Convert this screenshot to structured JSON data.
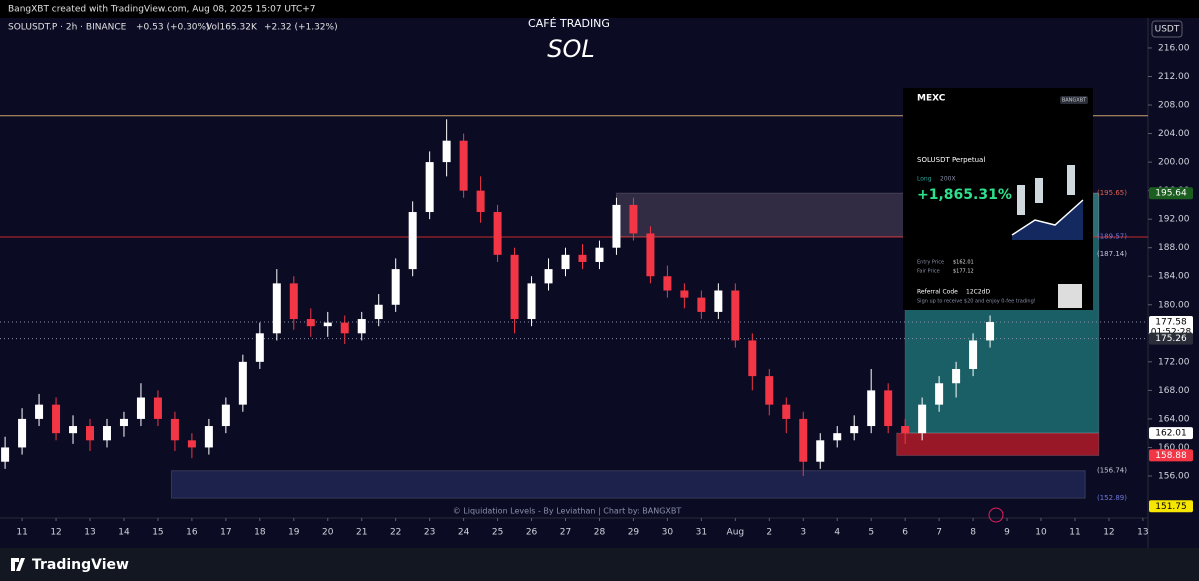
{
  "header": {
    "credit": "BangXBT created with TradingView.com, Aug 08, 2025 15:07 UTC+7",
    "symbol": "SOLUSDT.P · 2h · BINANCE",
    "change": "+0.53 (+0.30%)",
    "volume": "Vol165.32K",
    "volume_change": "+2.32 (+1.32%)"
  },
  "footer": {
    "brand": "TradingView",
    "watermark": "© Liquidation Levels - By Leviathan | Chart by: BANGXBT"
  },
  "card": {
    "exchange": "MEXC",
    "user": "BANGXBT",
    "instrument": "SOLUSDT Perpetual",
    "side": "Long",
    "leverage": "200X",
    "pnl": "+1,865.31%",
    "entry_label": "Entry Price",
    "entry": "$162.01",
    "fair_label": "Fair Price",
    "fair": "$177.12",
    "referral_label": "Referral Code",
    "referral": "12C2dD",
    "promo": "Sign up to receive $20 and enjoy 0-fee trading!"
  },
  "chart_data": {
    "type": "candlestick",
    "title": "CAFÉ TRADING",
    "subtitle": "SOL",
    "currency": "USDT",
    "up_color": "#ffffff",
    "down_color": "#f23645",
    "x": [
      -0.5,
      0,
      0.5,
      1,
      1.5,
      2,
      2.5,
      3,
      3.5,
      4,
      4.5,
      5,
      5.5,
      6,
      6.5,
      7,
      7.5,
      8,
      8.5,
      9,
      9.5,
      10,
      10.5,
      11,
      11.5,
      12,
      12.5,
      13,
      13.5,
      14,
      14.5,
      15,
      15.5,
      16,
      16.5,
      17,
      17.5,
      18,
      18.5,
      19,
      19.5,
      20,
      20.5,
      21,
      21.5,
      22,
      22.5,
      23,
      23.5,
      24,
      24.5,
      25,
      25.5,
      26,
      26.5,
      27,
      27.5,
      28,
      28.5
    ],
    "open": [
      158,
      160,
      164,
      166,
      162,
      163,
      161,
      163,
      164,
      167,
      164,
      161,
      160,
      163,
      166,
      172,
      176,
      183,
      178,
      177,
      177.5,
      176,
      178,
      180,
      185,
      193,
      200,
      203,
      196,
      193,
      187,
      178,
      183,
      185,
      187,
      186,
      188,
      194,
      190,
      184,
      182,
      181,
      179,
      182,
      175,
      170,
      166,
      164,
      158,
      161,
      162,
      163,
      168,
      163,
      162,
      166,
      169,
      171,
      175
    ],
    "high": [
      161.5,
      165.5,
      167.5,
      167,
      164.5,
      164,
      164,
      165,
      169,
      168,
      165,
      162,
      164,
      167,
      173,
      177.5,
      185,
      184,
      179.5,
      179,
      178.5,
      179,
      181.5,
      186.5,
      194.5,
      201.5,
      206,
      204,
      198,
      194,
      188,
      184,
      186.5,
      188,
      188.5,
      189,
      195,
      195,
      191,
      185.5,
      183,
      182,
      183,
      183,
      176,
      171,
      167,
      165,
      162,
      163,
      164.5,
      171,
      169,
      164,
      167,
      170,
      172,
      176,
      178.5
    ],
    "low": [
      157,
      159,
      163,
      161,
      160.5,
      159.5,
      160,
      161.5,
      163,
      163,
      159.5,
      158.5,
      159,
      162,
      165,
      171,
      175,
      176.5,
      175.5,
      175.5,
      174.5,
      175,
      177,
      179,
      184,
      192,
      198,
      195,
      191.5,
      186,
      176,
      177,
      182,
      184,
      185,
      185,
      187,
      189,
      183,
      181,
      179.5,
      178,
      178,
      174,
      168,
      164.5,
      162,
      156,
      157,
      160,
      161,
      162,
      162,
      160.5,
      161,
      165,
      167,
      170,
      174
    ],
    "close": [
      160,
      164,
      166,
      162,
      163,
      161,
      163,
      164,
      167,
      164,
      161,
      160,
      163,
      166,
      172,
      176,
      183,
      178,
      177,
      177.5,
      176,
      178,
      180,
      185,
      193,
      200,
      203,
      196,
      193,
      187,
      178,
      183,
      185,
      187,
      186,
      188,
      194,
      190,
      184,
      182,
      181,
      179,
      182,
      175,
      170,
      166,
      164,
      158,
      161,
      162,
      163,
      168,
      163,
      162,
      166,
      169,
      171,
      175,
      177.58
    ],
    "xlim": [
      -0.65,
      33.15
    ],
    "xticks": [
      {
        "value": 0,
        "label": "11"
      },
      {
        "value": 1,
        "label": "12"
      },
      {
        "value": 2,
        "label": "13"
      },
      {
        "value": 3,
        "label": "14"
      },
      {
        "value": 4,
        "label": "15"
      },
      {
        "value": 5,
        "label": "16"
      },
      {
        "value": 6,
        "label": "17"
      },
      {
        "value": 7,
        "label": "18"
      },
      {
        "value": 8,
        "label": "19"
      },
      {
        "value": 9,
        "label": "20"
      },
      {
        "value": 10,
        "label": "21"
      },
      {
        "value": 11,
        "label": "22"
      },
      {
        "value": 12,
        "label": "23"
      },
      {
        "value": 13,
        "label": "24"
      },
      {
        "value": 14,
        "label": "25"
      },
      {
        "value": 15,
        "label": "26"
      },
      {
        "value": 16,
        "label": "27"
      },
      {
        "value": 17,
        "label": "28"
      },
      {
        "value": 18,
        "label": "29"
      },
      {
        "value": 19,
        "label": "30"
      },
      {
        "value": 20,
        "label": "31"
      },
      {
        "value": 21,
        "label": "Aug"
      },
      {
        "value": 22,
        "label": "2"
      },
      {
        "value": 23,
        "label": "3"
      },
      {
        "value": 24,
        "label": "4"
      },
      {
        "value": 25,
        "label": "5"
      },
      {
        "value": 26,
        "label": "6"
      },
      {
        "value": 27,
        "label": "7"
      },
      {
        "value": 28,
        "label": "8"
      },
      {
        "value": 29,
        "label": "9"
      },
      {
        "value": 30,
        "label": "10"
      },
      {
        "value": 31,
        "label": "11"
      },
      {
        "value": 32,
        "label": "12"
      },
      {
        "value": 33,
        "label": "13"
      }
    ],
    "ylim": [
      150.25,
      220.2
    ],
    "yticks": [
      {
        "value": 156,
        "label": "156.00"
      },
      {
        "value": 160,
        "label": "160.00"
      },
      {
        "value": 164,
        "label": "164.00"
      },
      {
        "value": 168,
        "label": "168.00"
      },
      {
        "value": 172,
        "label": "172.00"
      },
      {
        "value": 176,
        "label": "176.00"
      },
      {
        "value": 180,
        "label": "180.00"
      },
      {
        "value": 184,
        "label": "184.00"
      },
      {
        "value": 188,
        "label": "188.00"
      },
      {
        "value": 192,
        "label": "192.00"
      },
      {
        "value": 196,
        "label": "196.00"
      },
      {
        "value": 200,
        "label": "200.00"
      },
      {
        "value": 204,
        "label": "204.00"
      },
      {
        "value": 208,
        "label": "208.00"
      },
      {
        "value": 212,
        "label": "212.00"
      },
      {
        "value": 216,
        "label": "216.00"
      }
    ],
    "grid": false,
    "zones": [
      {
        "low": 189.57,
        "high": 195.65,
        "from": 17.5,
        "to": 31.7,
        "color": "rgba(150,130,150,0.28)"
      },
      {
        "low": 162.01,
        "high": 195.64,
        "from": 26,
        "to": 31.7,
        "color": "rgba(38,166,154,0.55)"
      },
      {
        "low": 158.88,
        "high": 162.01,
        "from": 25.75,
        "to": 31.7,
        "color": "rgba(200,30,40,0.75)"
      },
      {
        "low": 152.89,
        "high": 156.74,
        "from": 4.4,
        "to": 31.3,
        "color": "rgba(70,90,170,0.3)"
      }
    ],
    "levels": [
      {
        "value": 206.5,
        "color": "#c9a26b",
        "dash": "none"
      },
      {
        "value": 189.5,
        "color": "#c62828",
        "dash": "none"
      },
      {
        "value": 177.58,
        "color": "#8a8fa8",
        "dash": "1,3"
      },
      {
        "value": 175.26,
        "color": "#8a8fa8",
        "dash": "1,3"
      }
    ],
    "annotations": [
      {
        "value": 195.65,
        "label": "(195.65)",
        "color": "#e0624f"
      },
      {
        "value": 189.57,
        "label": "(189.57)",
        "color": "#6d7ad8"
      },
      {
        "value": 187.14,
        "label": "(187.14)",
        "color": "#c8c8d8"
      },
      {
        "value": 156.74,
        "label": "(156.74)",
        "color": "#c8c8d8"
      },
      {
        "value": 152.89,
        "label": "(152.89)",
        "color": "#6d7ad8"
      }
    ],
    "price_tags": [
      {
        "value": 195.64,
        "bg": "#1b5e20",
        "fg": "#ffffff"
      },
      {
        "value": 177.58,
        "bg": "#ffffff",
        "fg": "#000000",
        "sub": "01:52:28"
      },
      {
        "value": 175.26,
        "bg": "#2a2e39",
        "fg": "#ffffff"
      },
      {
        "value": 162.01,
        "bg": "#ffffff",
        "fg": "#000000"
      },
      {
        "value": 158.88,
        "bg": "#f23645",
        "fg": "#ffffff"
      },
      {
        "value": 151.75,
        "bg": "#f7e600",
        "fg": "#000000"
      }
    ]
  }
}
